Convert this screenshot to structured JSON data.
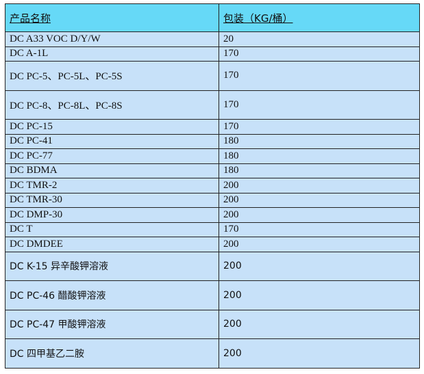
{
  "header": {
    "name": "产品名称",
    "package": "包装（KG/桶）"
  },
  "rows": [
    {
      "name": "DC A33 VOC D/Y/W",
      "package": "20"
    },
    {
      "name": "DC A-1L",
      "package": "170"
    },
    {
      "name": "DC PC-5、PC-5L、PC-5S",
      "package": "170"
    },
    {
      "name": "DC PC-8、PC-8L、PC-8S",
      "package": "170"
    },
    {
      "name": "DC PC-15",
      "package": "170"
    },
    {
      "name": "DC PC-41",
      "package": "180"
    },
    {
      "name": "DC PC-77",
      "package": "180"
    },
    {
      "name": "DC BDMA",
      "package": "180"
    },
    {
      "name": "DC TMR-2",
      "package": "200"
    },
    {
      "name": "DC TMR-30",
      "package": "200"
    },
    {
      "name": "DC DMP-30",
      "package": "200"
    },
    {
      "name": "DC T",
      "package": "170"
    },
    {
      "name": "DC DMDEE",
      "package": "200"
    },
    {
      "name": "DC K-15 异辛酸钾溶液",
      "package": "200"
    },
    {
      "name": "DC PC-46 醋酸钾溶液",
      "package": "200"
    },
    {
      "name": "DC PC-47 甲酸钾溶液",
      "package": "200"
    },
    {
      "name": "DC  四甲基乙二胺",
      "package": "200"
    }
  ],
  "colors": {
    "header_bg": "#66d9f7",
    "row_bg": "#c7e1f9",
    "border": "#222222"
  }
}
